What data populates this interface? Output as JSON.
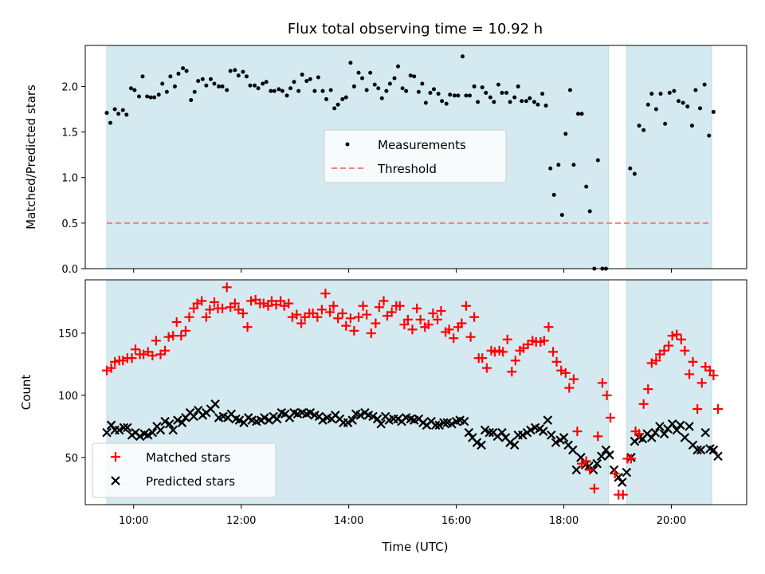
{
  "chart_data": [
    {
      "id": "ratio",
      "type": "scatter",
      "title": "Flux total observing time = 10.92 h",
      "xlabel": "",
      "ylabel": "Matched/Predicted stars",
      "xlim": [
        "09:06",
        "21:24"
      ],
      "ylim": [
        0,
        2.45
      ],
      "yticks": [
        0.0,
        0.5,
        1.0,
        1.5,
        2.0
      ],
      "ytick_labels": [
        "0.0",
        "0.5",
        "1.0",
        "1.5",
        "2.0"
      ],
      "xticks": [
        "10:00",
        "12:00",
        "14:00",
        "16:00",
        "18:00",
        "20:00"
      ],
      "shaded_intervals": [
        [
          "09:30",
          "18:50"
        ],
        [
          "19:10",
          "20:45"
        ]
      ],
      "shade_color": "#d4eaf0",
      "threshold": 0.5,
      "legend": {
        "position": "center",
        "entries": [
          "Measurements",
          "Threshold"
        ]
      },
      "series": [
        {
          "name": "Measurements",
          "color": "#000000",
          "marker": "dot",
          "x": [],
          "y": []
        },
        {
          "name": "Threshold",
          "color": "#f08080",
          "style": "dashed"
        }
      ]
    },
    {
      "id": "counts",
      "type": "scatter",
      "title": "",
      "xlabel": "Time (UTC)",
      "ylabel": "Count",
      "xlim": [
        "09:06",
        "21:24"
      ],
      "ylim": [
        12,
        193
      ],
      "yticks": [
        50,
        100,
        150
      ],
      "ytick_labels": [
        "50",
        "100",
        "150"
      ],
      "xticks": [
        "10:00",
        "12:00",
        "14:00",
        "16:00",
        "18:00",
        "20:00"
      ],
      "xtick_labels": [
        "10:00",
        "12:00",
        "14:00",
        "16:00",
        "18:00",
        "20:00"
      ],
      "shaded_intervals": [
        [
          "09:30",
          "18:50"
        ],
        [
          "19:10",
          "20:45"
        ]
      ],
      "shade_color": "#d4eaf0",
      "legend": {
        "position": "lower-left",
        "entries": [
          "Matched stars",
          "Predicted stars"
        ]
      },
      "series": [
        {
          "name": "Matched stars",
          "color": "#ff0000",
          "marker": "plus",
          "x": [],
          "y": []
        },
        {
          "name": "Predicted stars",
          "color": "#000000",
          "marker": "x",
          "x": [],
          "y": []
        }
      ]
    }
  ]
}
